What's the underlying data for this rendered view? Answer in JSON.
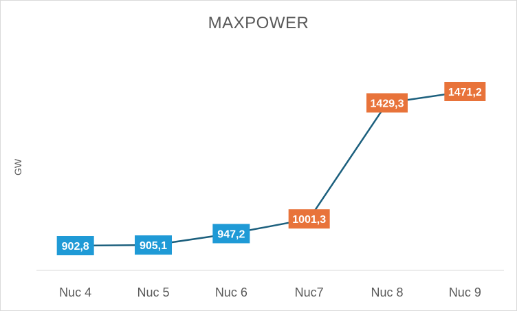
{
  "chart_data": {
    "type": "line",
    "title": "MAXPOWER",
    "xlabel": "",
    "ylabel": "GW",
    "categories": [
      "Nuc 4",
      "Nuc 5",
      "Nuc 6",
      "Nuc7",
      "Nuc 8",
      "Nuc 9"
    ],
    "values": [
      902.8,
      905.1,
      947.2,
      1001.3,
      1429.3,
      1471.2
    ],
    "data_labels": [
      "902,8",
      "905,1",
      "947,2",
      "1001,3",
      "1429,3",
      "1471,2"
    ],
    "label_colors": [
      "#1f9ad6",
      "#1f9ad6",
      "#1f9ad6",
      "#e8733a",
      "#e8733a",
      "#e8733a"
    ],
    "line_color": "#1b5f7d",
    "grid": false,
    "legend": "none"
  }
}
